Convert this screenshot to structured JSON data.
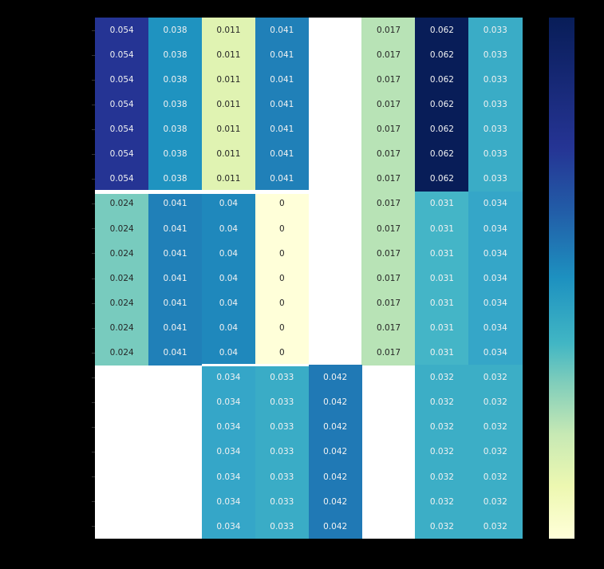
{
  "chart_data": {
    "type": "heatmap",
    "title": "",
    "xlabel": "",
    "ylabel": "",
    "colormap": "YlGnBu",
    "colorbar": {
      "min": 0,
      "max": 0.062,
      "tick_labels_visible": false
    },
    "n_rows": 21,
    "n_cols": 8,
    "annotations": true,
    "missing_value_color": "#ffffff",
    "row_groups": [
      {
        "rows": [
          0,
          6
        ],
        "values": [
          0.054,
          0.038,
          0.011,
          0.041,
          null,
          0.017,
          0.062,
          0.033
        ]
      },
      {
        "rows": [
          7,
          13
        ],
        "values": [
          0.024,
          0.041,
          0.04,
          0,
          null,
          0.017,
          0.031,
          0.034
        ]
      },
      {
        "rows": [
          14,
          20
        ],
        "values": [
          null,
          null,
          0.034,
          0.033,
          0.042,
          null,
          0.032,
          0.032
        ]
      }
    ],
    "matrix": [
      [
        0.054,
        0.038,
        0.011,
        0.041,
        null,
        0.017,
        0.062,
        0.033
      ],
      [
        0.054,
        0.038,
        0.011,
        0.041,
        null,
        0.017,
        0.062,
        0.033
      ],
      [
        0.054,
        0.038,
        0.011,
        0.041,
        null,
        0.017,
        0.062,
        0.033
      ],
      [
        0.054,
        0.038,
        0.011,
        0.041,
        null,
        0.017,
        0.062,
        0.033
      ],
      [
        0.054,
        0.038,
        0.011,
        0.041,
        null,
        0.017,
        0.062,
        0.033
      ],
      [
        0.054,
        0.038,
        0.011,
        0.041,
        null,
        0.017,
        0.062,
        0.033
      ],
      [
        0.054,
        0.038,
        0.011,
        0.041,
        null,
        0.017,
        0.062,
        0.033
      ],
      [
        0.024,
        0.041,
        0.04,
        0,
        null,
        0.017,
        0.031,
        0.034
      ],
      [
        0.024,
        0.041,
        0.04,
        0,
        null,
        0.017,
        0.031,
        0.034
      ],
      [
        0.024,
        0.041,
        0.04,
        0,
        null,
        0.017,
        0.031,
        0.034
      ],
      [
        0.024,
        0.041,
        0.04,
        0,
        null,
        0.017,
        0.031,
        0.034
      ],
      [
        0.024,
        0.041,
        0.04,
        0,
        null,
        0.017,
        0.031,
        0.034
      ],
      [
        0.024,
        0.041,
        0.04,
        0,
        null,
        0.017,
        0.031,
        0.034
      ],
      [
        0.024,
        0.041,
        0.04,
        0,
        null,
        0.017,
        0.031,
        0.034
      ],
      [
        null,
        null,
        0.034,
        0.033,
        0.042,
        null,
        0.032,
        0.032
      ],
      [
        null,
        null,
        0.034,
        0.033,
        0.042,
        null,
        0.032,
        0.032
      ],
      [
        null,
        null,
        0.034,
        0.033,
        0.042,
        null,
        0.032,
        0.032
      ],
      [
        null,
        null,
        0.034,
        0.033,
        0.042,
        null,
        0.032,
        0.032
      ],
      [
        null,
        null,
        0.034,
        0.033,
        0.042,
        null,
        0.032,
        0.032
      ],
      [
        null,
        null,
        0.034,
        0.033,
        0.042,
        null,
        0.032,
        0.032
      ],
      [
        null,
        null,
        0.034,
        0.033,
        0.042,
        null,
        0.032,
        0.032
      ]
    ],
    "labels": [
      [
        "0.054",
        "0.038",
        "0.011",
        "0.041",
        "",
        "0.017",
        "0.062",
        "0.033"
      ],
      [
        "0.054",
        "0.038",
        "0.011",
        "0.041",
        "",
        "0.017",
        "0.062",
        "0.033"
      ],
      [
        "0.054",
        "0.038",
        "0.011",
        "0.041",
        "",
        "0.017",
        "0.062",
        "0.033"
      ],
      [
        "0.054",
        "0.038",
        "0.011",
        "0.041",
        "",
        "0.017",
        "0.062",
        "0.033"
      ],
      [
        "0.054",
        "0.038",
        "0.011",
        "0.041",
        "",
        "0.017",
        "0.062",
        "0.033"
      ],
      [
        "0.054",
        "0.038",
        "0.011",
        "0.041",
        "",
        "0.017",
        "0.062",
        "0.033"
      ],
      [
        "0.054",
        "0.038",
        "0.011",
        "0.041",
        "",
        "0.017",
        "0.062",
        "0.033"
      ],
      [
        "0.024",
        "0.041",
        "0.04",
        "0",
        "",
        "0.017",
        "0.031",
        "0.034"
      ],
      [
        "0.024",
        "0.041",
        "0.04",
        "0",
        "",
        "0.017",
        "0.031",
        "0.034"
      ],
      [
        "0.024",
        "0.041",
        "0.04",
        "0",
        "",
        "0.017",
        "0.031",
        "0.034"
      ],
      [
        "0.024",
        "0.041",
        "0.04",
        "0",
        "",
        "0.017",
        "0.031",
        "0.034"
      ],
      [
        "0.024",
        "0.041",
        "0.04",
        "0",
        "",
        "0.017",
        "0.031",
        "0.034"
      ],
      [
        "0.024",
        "0.041",
        "0.04",
        "0",
        "",
        "0.017",
        "0.031",
        "0.034"
      ],
      [
        "0.024",
        "0.041",
        "0.04",
        "0",
        "",
        "0.017",
        "0.031",
        "0.034"
      ],
      [
        "",
        "",
        "0.034",
        "0.033",
        "0.042",
        "",
        "0.032",
        "0.032"
      ],
      [
        "",
        "",
        "0.034",
        "0.033",
        "0.042",
        "",
        "0.032",
        "0.032"
      ],
      [
        "",
        "",
        "0.034",
        "0.033",
        "0.042",
        "",
        "0.032",
        "0.032"
      ],
      [
        "",
        "",
        "0.034",
        "0.033",
        "0.042",
        "",
        "0.032",
        "0.032"
      ],
      [
        "",
        "",
        "0.034",
        "0.033",
        "0.042",
        "",
        "0.032",
        "0.032"
      ],
      [
        "",
        "",
        "0.034",
        "0.033",
        "0.042",
        "",
        "0.032",
        "0.032"
      ],
      [
        "",
        "",
        "0.034",
        "0.033",
        "0.042",
        "",
        "0.032",
        "0.032"
      ]
    ],
    "colors": {
      "0.054": "#253494",
      "0.038": "#1f93c0",
      "0.011": "#e0f3b2",
      "0.041": "#2080b8",
      "0.017": "#b8e3b6",
      "0.062": "#081d58",
      "0.033": "#3aacc6",
      "0.024": "#78cbbe",
      "0.04": "#1f88bc",
      "0": "#ffffd9",
      "0.031": "#44b5c7",
      "0.034": "#35a6c8",
      "0.042": "#2079b5",
      "0.032": "#3caec6"
    }
  }
}
